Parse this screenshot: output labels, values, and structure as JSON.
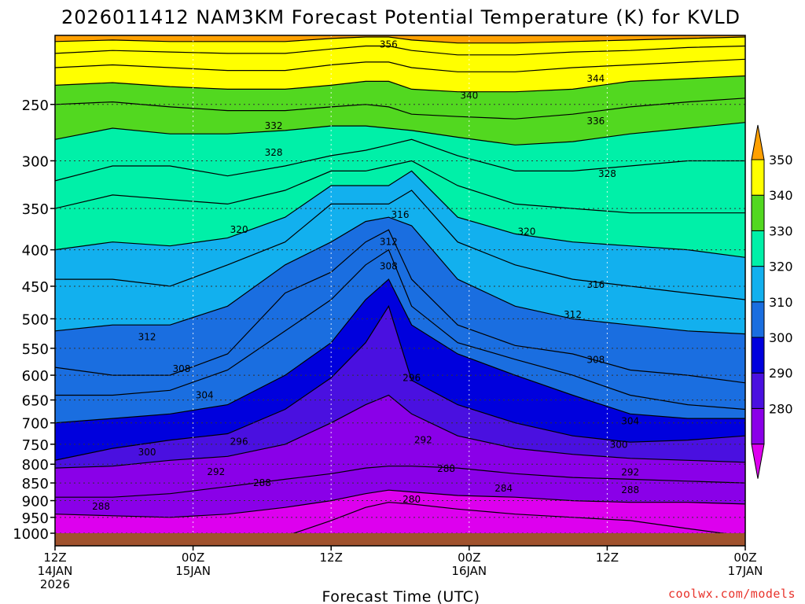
{
  "title": "2026011412 NAM3KM Forecast Potential Temperature (K) for KVLD",
  "credit": "coolwx.com/models",
  "colors": {
    "ground": "#a0522d",
    "contour": "#000000",
    "grid": "#333333",
    "credit": "#e8322a"
  },
  "chart_data": {
    "type": "heatmap",
    "title": "2026011412 NAM3KM Forecast Potential Temperature (K) for KVLD",
    "xlabel": "Forecast Time (UTC)",
    "ylabel": "",
    "y_axis": {
      "scale": "log",
      "reversed": true,
      "range": [
        200,
        1000
      ],
      "tick_labels": [
        "250",
        "300",
        "350",
        "400",
        "450",
        "500",
        "550",
        "600",
        "650",
        "700",
        "750",
        "800",
        "850",
        "900",
        "950",
        "1000"
      ],
      "tick_values": [
        250,
        300,
        350,
        400,
        450,
        500,
        550,
        600,
        650,
        700,
        750,
        800,
        850,
        900,
        950,
        1000
      ]
    },
    "x_axis": {
      "range_hours": [
        0,
        60
      ],
      "ticks": [
        {
          "hour": 0,
          "line1": "12Z",
          "line2": "14JAN",
          "line3": "2026"
        },
        {
          "hour": 12,
          "line1": "00Z",
          "line2": "15JAN",
          "line3": ""
        },
        {
          "hour": 24,
          "line1": "12Z",
          "line2": "",
          "line3": ""
        },
        {
          "hour": 36,
          "line1": "00Z",
          "line2": "16JAN",
          "line3": ""
        },
        {
          "hour": 48,
          "line1": "12Z",
          "line2": "",
          "line3": ""
        },
        {
          "hour": 60,
          "line1": "00Z",
          "line2": "17JAN",
          "line3": ""
        }
      ]
    },
    "grid": "dotted",
    "colorbar": {
      "labels": [
        "350",
        "340",
        "330",
        "320",
        "310",
        "300",
        "290",
        "280"
      ],
      "levels": [
        280,
        290,
        300,
        310,
        320,
        330,
        340,
        350
      ],
      "colors": [
        "#dd00ee",
        "#8a00e8",
        "#4a10e0",
        "#0000dd",
        "#1a6ee0",
        "#12b0ee",
        "#00f0a8",
        "#52d820",
        "#ffff00",
        "#ffa000"
      ]
    },
    "filled_bands": [
      {
        "level": 280,
        "color": "#dd00ee"
      },
      {
        "level": 284,
        "color": "#8a00e8"
      },
      {
        "level": 290,
        "color": "#4a10e0"
      },
      {
        "level": 296,
        "color": "#0000dd"
      },
      {
        "level": 300,
        "color": "#1a6ee0"
      },
      {
        "level": 310,
        "color": "#12b0ee"
      },
      {
        "level": 320,
        "color": "#00f0a8"
      },
      {
        "level": 330,
        "color": "#52d820"
      },
      {
        "level": 340,
        "color": "#ffff00"
      },
      {
        "level": 350,
        "color": "#ffa000"
      }
    ],
    "levels_profile": {
      "times_hours": [
        0,
        5,
        10,
        15,
        20,
        24,
        27,
        29,
        31,
        35,
        40,
        45,
        50,
        55,
        60
      ],
      "isentropes": [
        {
          "theta": 280,
          "p": [
            1010,
            1010,
            1010,
            1010,
            1010,
            960,
            920,
            905,
            910,
            925,
            940,
            950,
            960,
            985,
            1010
          ]
        },
        {
          "theta": 284,
          "p": [
            940,
            945,
            950,
            940,
            920,
            900,
            880,
            870,
            875,
            885,
            890,
            900,
            905,
            905,
            910
          ]
        },
        {
          "theta": 288,
          "p": [
            890,
            890,
            880,
            860,
            840,
            825,
            810,
            805,
            805,
            810,
            825,
            835,
            840,
            845,
            850
          ]
        },
        {
          "theta": 292,
          "p": [
            810,
            805,
            790,
            780,
            750,
            700,
            660,
            640,
            680,
            730,
            760,
            775,
            785,
            790,
            795
          ]
        },
        {
          "theta": 296,
          "p": [
            790,
            760,
            740,
            725,
            670,
            605,
            540,
            480,
            610,
            660,
            700,
            730,
            745,
            740,
            730
          ]
        },
        {
          "theta": 300,
          "p": [
            700,
            690,
            680,
            660,
            600,
            540,
            470,
            440,
            510,
            560,
            600,
            640,
            680,
            690,
            690
          ]
        },
        {
          "theta": 304,
          "p": [
            640,
            640,
            630,
            590,
            520,
            470,
            420,
            400,
            480,
            540,
            570,
            600,
            640,
            660,
            670
          ]
        },
        {
          "theta": 308,
          "p": [
            585,
            600,
            600,
            560,
            460,
            430,
            390,
            375,
            440,
            510,
            545,
            560,
            590,
            600,
            615
          ]
        },
        {
          "theta": 312,
          "p": [
            520,
            510,
            510,
            480,
            420,
            390,
            365,
            360,
            370,
            440,
            480,
            500,
            510,
            520,
            525
          ]
        },
        {
          "theta": 316,
          "p": [
            440,
            440,
            450,
            420,
            390,
            345,
            345,
            345,
            330,
            390,
            420,
            440,
            450,
            460,
            470
          ]
        },
        {
          "theta": 320,
          "p": [
            400,
            390,
            395,
            385,
            360,
            325,
            325,
            325,
            310,
            360,
            380,
            390,
            395,
            400,
            410
          ]
        },
        {
          "theta": 324,
          "p": [
            350,
            335,
            340,
            345,
            330,
            310,
            310,
            305,
            300,
            325,
            345,
            350,
            355,
            355,
            355
          ]
        },
        {
          "theta": 328,
          "p": [
            320,
            305,
            305,
            315,
            305,
            295,
            290,
            285,
            280,
            295,
            310,
            310,
            305,
            300,
            300
          ]
        },
        {
          "theta": 332,
          "p": [
            280,
            270,
            275,
            275,
            272,
            268,
            268,
            270,
            272,
            278,
            285,
            282,
            275,
            270,
            265
          ]
        },
        {
          "theta": 336,
          "p": [
            250,
            248,
            252,
            255,
            255,
            252,
            250,
            252,
            258,
            260,
            262,
            258,
            252,
            248,
            245
          ]
        },
        {
          "theta": 340,
          "p": [
            235,
            233,
            236,
            238,
            238,
            235,
            232,
            232,
            238,
            240,
            240,
            238,
            232,
            230,
            228
          ]
        },
        {
          "theta": 344,
          "p": [
            222,
            220,
            222,
            224,
            224,
            220,
            218,
            218,
            222,
            225,
            225,
            222,
            220,
            218,
            216
          ]
        },
        {
          "theta": 348,
          "p": [
            212,
            210,
            211,
            212,
            212,
            209,
            207,
            207,
            210,
            213,
            213,
            211,
            210,
            208,
            207
          ]
        },
        {
          "theta": 352,
          "p": [
            204,
            203,
            204,
            204,
            204,
            202,
            201,
            201,
            203,
            205,
            205,
            204,
            203,
            202,
            201
          ]
        }
      ]
    },
    "contour_labels": [
      {
        "text": "356",
        "hour": 29,
        "p": 206
      },
      {
        "text": "344",
        "hour": 47,
        "p": 230
      },
      {
        "text": "340",
        "hour": 36,
        "p": 243
      },
      {
        "text": "332",
        "hour": 19,
        "p": 268
      },
      {
        "text": "336",
        "hour": 47,
        "p": 264
      },
      {
        "text": "328",
        "hour": 19,
        "p": 292
      },
      {
        "text": "328",
        "hour": 48,
        "p": 313
      },
      {
        "text": "316",
        "hour": 30,
        "p": 357
      },
      {
        "text": "320",
        "hour": 16,
        "p": 375
      },
      {
        "text": "320",
        "hour": 41,
        "p": 377
      },
      {
        "text": "312",
        "hour": 29,
        "p": 390
      },
      {
        "text": "308",
        "hour": 29,
        "p": 422
      },
      {
        "text": "316",
        "hour": 47,
        "p": 448
      },
      {
        "text": "312",
        "hour": 45,
        "p": 493
      },
      {
        "text": "312",
        "hour": 8,
        "p": 530
      },
      {
        "text": "308",
        "hour": 11,
        "p": 588
      },
      {
        "text": "308",
        "hour": 47,
        "p": 571
      },
      {
        "text": "296",
        "hour": 31,
        "p": 605
      },
      {
        "text": "304",
        "hour": 13,
        "p": 640
      },
      {
        "text": "304",
        "hour": 50,
        "p": 696
      },
      {
        "text": "292",
        "hour": 32,
        "p": 740
      },
      {
        "text": "296",
        "hour": 16,
        "p": 744
      },
      {
        "text": "300",
        "hour": 49,
        "p": 751
      },
      {
        "text": "300",
        "hour": 8,
        "p": 770
      },
      {
        "text": "288",
        "hour": 34,
        "p": 812
      },
      {
        "text": "292",
        "hour": 14,
        "p": 820
      },
      {
        "text": "292",
        "hour": 50,
        "p": 821
      },
      {
        "text": "288",
        "hour": 18,
        "p": 850
      },
      {
        "text": "284",
        "hour": 39,
        "p": 865
      },
      {
        "text": "288",
        "hour": 50,
        "p": 870
      },
      {
        "text": "280",
        "hour": 31,
        "p": 897
      },
      {
        "text": "288",
        "hour": 4,
        "p": 917
      }
    ]
  }
}
